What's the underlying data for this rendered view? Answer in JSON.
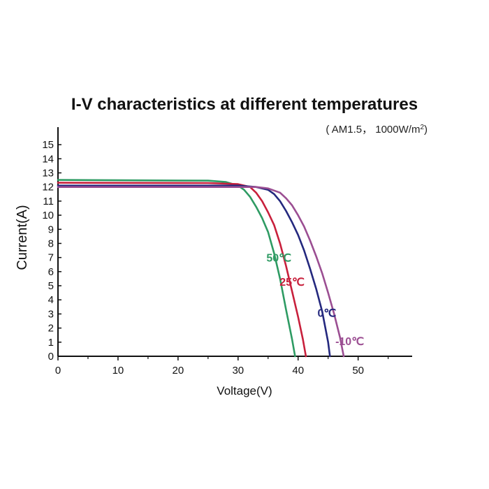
{
  "chart_data": {
    "type": "line",
    "title": "I-V characteristics at different temperatures",
    "subtitle_prefix": "( AM1.5， 1000W/m",
    "subtitle_sup": "2",
    "subtitle_suffix": ")",
    "xlabel": "Voltage(V)",
    "ylabel": "Current(A)",
    "xlim": [
      0,
      59
    ],
    "ylim": [
      0,
      15.5
    ],
    "x_ticks": [
      0,
      10,
      20,
      30,
      40,
      50
    ],
    "y_ticks": [
      0,
      1,
      2,
      3,
      4,
      5,
      6,
      7,
      8,
      9,
      10,
      11,
      12,
      13,
      14,
      15
    ],
    "grid": false,
    "series": [
      {
        "name": "50℃",
        "color": "#2e9b63",
        "x": [
          0,
          25,
          28,
          30,
          31,
          32,
          33,
          34,
          35,
          36,
          37,
          38,
          39,
          39.5
        ],
        "y": [
          12.5,
          12.45,
          12.35,
          12.1,
          11.8,
          11.3,
          10.6,
          9.8,
          8.8,
          7.3,
          5.5,
          3.3,
          1.2,
          0
        ]
      },
      {
        "name": "25℃",
        "color": "#c8203c",
        "x": [
          0,
          25,
          30,
          32,
          33,
          34,
          35,
          36,
          37,
          38,
          39,
          40,
          40.8,
          41.3
        ],
        "y": [
          12.3,
          12.28,
          12.2,
          12.0,
          11.6,
          11.0,
          10.2,
          9.3,
          8.0,
          6.4,
          4.6,
          2.8,
          1.2,
          0
        ]
      },
      {
        "name": "0℃",
        "color": "#24287e",
        "x": [
          0,
          25,
          30,
          33,
          35,
          36,
          37,
          38,
          39,
          40,
          41,
          42,
          43,
          44,
          45,
          45.3
        ],
        "y": [
          12.1,
          12.1,
          12.1,
          12.0,
          11.8,
          11.5,
          11.0,
          10.3,
          9.5,
          8.6,
          7.5,
          6.2,
          4.8,
          3.2,
          1.0,
          0
        ]
      },
      {
        "name": "-10℃",
        "color": "#9b4e92",
        "x": [
          0,
          25,
          30,
          33,
          35,
          37,
          38,
          39,
          40,
          41,
          42,
          43,
          44,
          45,
          46,
          47,
          47.6
        ],
        "y": [
          12.0,
          12.0,
          12.0,
          12.0,
          11.9,
          11.6,
          11.2,
          10.7,
          10.0,
          9.2,
          8.2,
          7.1,
          5.9,
          4.5,
          3.0,
          1.3,
          0
        ]
      }
    ],
    "series_label_anchors": [
      {
        "x": 36.8,
        "y": 6.7
      },
      {
        "x": 39.0,
        "y": 5.0
      },
      {
        "x": 44.8,
        "y": 2.8
      },
      {
        "x": 48.6,
        "y": 0.8
      }
    ]
  }
}
